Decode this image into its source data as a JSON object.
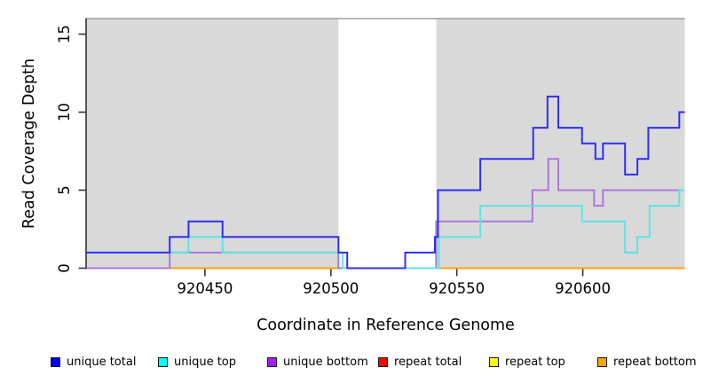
{
  "figure": {
    "title": "",
    "y_axis_label": "Read Coverage Depth",
    "x_axis_label": "Coordinate in Reference Genome"
  },
  "chart_data": {
    "type": "line",
    "subtype": "step-coverage-plot",
    "title": "",
    "xlabel": "Coordinate in Reference Genome",
    "ylabel": "Read Coverage Depth",
    "x_domain": [
      920403,
      920640.5
    ],
    "y_domain_display": [
      0,
      16
    ],
    "x_ticks": [
      920450,
      920500,
      920550,
      920600
    ],
    "y_ticks": [
      0,
      5,
      10,
      15
    ],
    "grid": false,
    "plot_bg_color": "#d9d9d9",
    "masked_region_color": "#ffffff",
    "masked_region": [
      920503,
      920541.8
    ],
    "top_boundary_line_value": 16,
    "top_boundary_line_color": "#9a9a9a",
    "axis_color": "#333333",
    "legend_position": "bottom",
    "series": [
      {
        "name": "repeat-total",
        "legend_label": "repeat total",
        "legend_color": "#ff0000",
        "line_color": "#e03535",
        "segments": [
          [
            [
              920403,
              0
            ],
            [
              920503,
              0
            ]
          ],
          [
            [
              920541.8,
              0
            ],
            [
              920640.5,
              0
            ]
          ]
        ]
      },
      {
        "name": "repeat-top",
        "legend_label": "repeat top",
        "legend_color": "#ffff00",
        "line_color": "#f2e52e",
        "segments": [
          [
            [
              920403,
              0
            ],
            [
              920503,
              0
            ]
          ],
          [
            [
              920541.8,
              0
            ],
            [
              920640.5,
              0
            ]
          ]
        ]
      },
      {
        "name": "repeat-bottom",
        "legend_label": "repeat bottom",
        "legend_color": "#ffa500",
        "line_color": "#ffa010",
        "segments": [
          [
            [
              920403,
              0
            ],
            [
              920503,
              0
            ]
          ],
          [
            [
              920541.8,
              0
            ],
            [
              920640.5,
              0
            ]
          ]
        ]
      },
      {
        "name": "unique-bottom",
        "legend_label": "unique bottom",
        "legend_color": "#a020f0",
        "line_color": "#ab77dc",
        "segments": [
          [
            [
              920403,
              0
            ],
            [
              920436,
              1
            ],
            [
              920503,
              0
            ],
            [
              920541.8,
              3
            ],
            [
              920580,
              5
            ],
            [
              920586.3,
              7
            ],
            [
              920590.3,
              5
            ],
            [
              920604.5,
              4
            ],
            [
              920608,
              5
            ],
            [
              920640.5,
              5
            ]
          ]
        ]
      },
      {
        "name": "unique-top",
        "legend_label": "unique top",
        "legend_color": "#00ffff",
        "line_color": "#5de4e4",
        "segments": [
          [
            [
              920403,
              1
            ],
            [
              920443.5,
              2
            ],
            [
              920457,
              1
            ],
            [
              920504.7,
              0
            ],
            [
              920542.9,
              2
            ],
            [
              920559.3,
              4
            ],
            [
              920599.7,
              3
            ],
            [
              920616.8,
              1
            ],
            [
              920621.7,
              2
            ],
            [
              920626.5,
              4
            ],
            [
              920638.3,
              5
            ],
            [
              920640.5,
              5
            ]
          ]
        ]
      },
      {
        "name": "unique-total",
        "legend_label": "unique total",
        "legend_color": "#0000ff",
        "line_color": "#2f2ff2",
        "segments": [
          [
            [
              920403,
              1
            ],
            [
              920436,
              2
            ],
            [
              920443.5,
              3
            ],
            [
              920457,
              2
            ],
            [
              920503,
              1
            ],
            [
              920506.5,
              0
            ],
            [
              920529.5,
              1
            ],
            [
              920541.3,
              2
            ],
            [
              920542.5,
              5
            ],
            [
              920559.3,
              7
            ],
            [
              920580.3,
              9
            ],
            [
              920586,
              11
            ],
            [
              920590.3,
              9
            ],
            [
              920599.7,
              8
            ],
            [
              920605,
              7
            ],
            [
              920608,
              8
            ],
            [
              920616.8,
              6
            ],
            [
              920621.7,
              7
            ],
            [
              920626,
              9
            ],
            [
              920638.3,
              10
            ],
            [
              920640.5,
              10
            ]
          ]
        ]
      }
    ],
    "legend_order": [
      "unique-total",
      "unique-top",
      "unique-bottom",
      "repeat-total",
      "repeat-top",
      "repeat-bottom"
    ],
    "legend_x_positions": [
      57,
      178,
      301,
      426,
      551,
      673
    ]
  }
}
